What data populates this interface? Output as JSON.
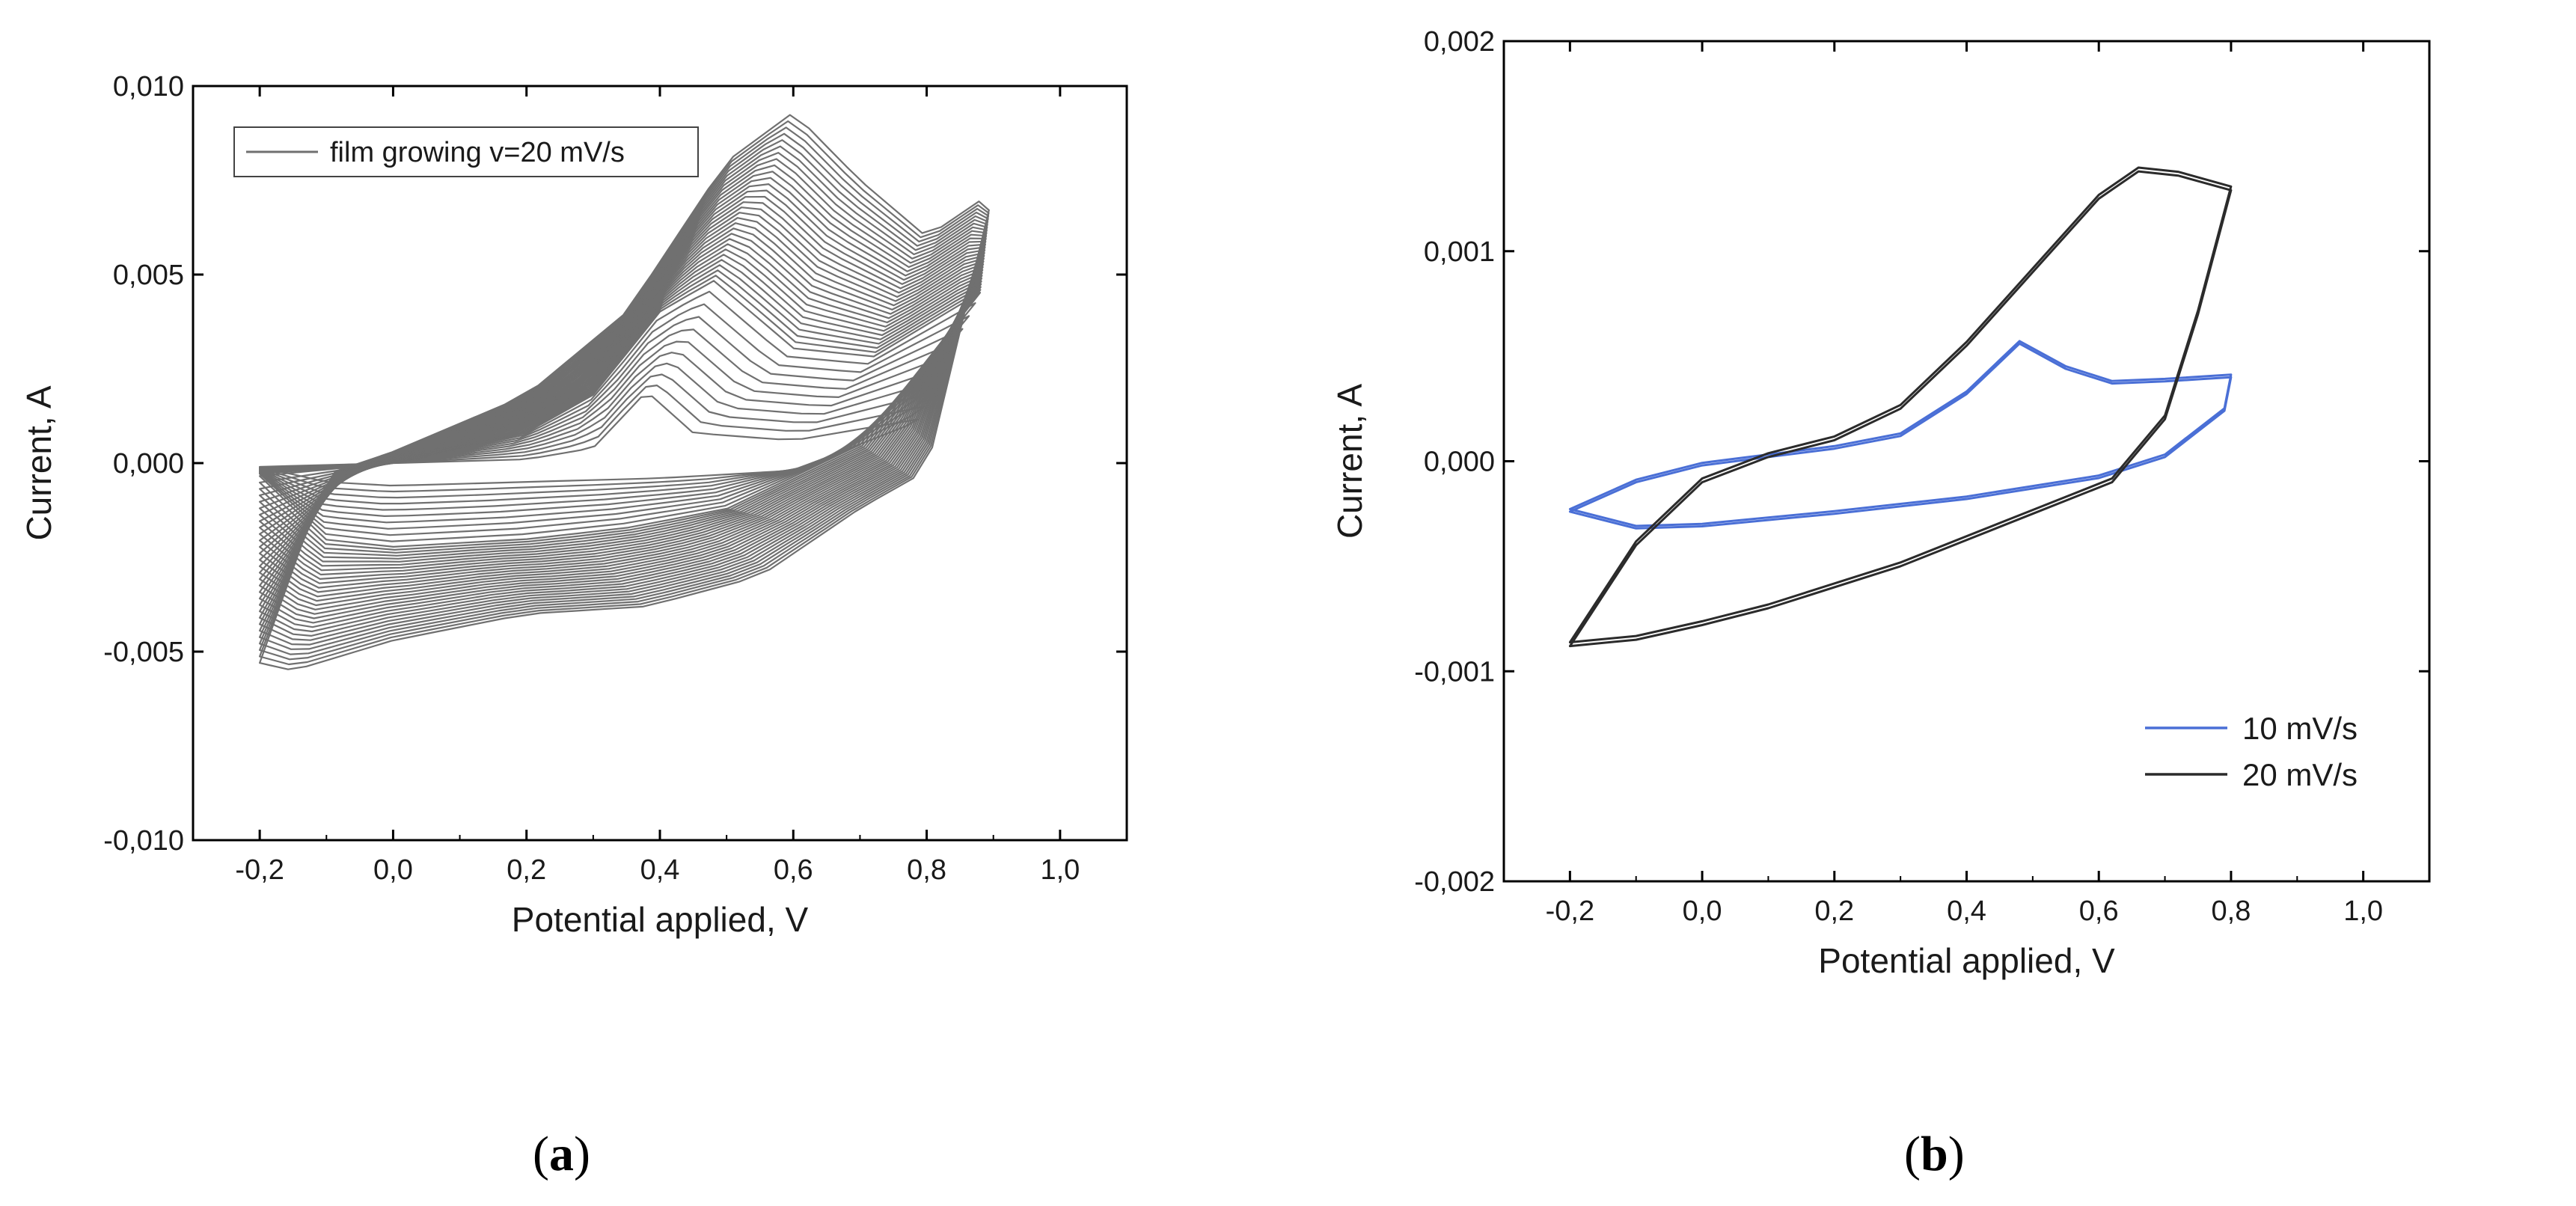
{
  "chart_data": [
    {
      "panel_label": "a",
      "type": "line",
      "xlabel": "Potential applied, V",
      "ylabel": "Current, A",
      "xlim": [
        -0.3,
        1.1
      ],
      "ylim": [
        -0.01,
        0.01
      ],
      "xticks": [
        -0.2,
        0.0,
        0.2,
        0.4,
        0.6,
        0.8,
        1.0
      ],
      "yticks": [
        -0.01,
        -0.005,
        0.0,
        0.005,
        0.01
      ],
      "xtick_labels": [
        "-0,2",
        "0,0",
        "0,2",
        "0,4",
        "0,6",
        "0,8",
        "1,0"
      ],
      "ytick_labels": [
        "-0,010",
        "-0,005",
        "0,000",
        "0,005",
        "0,010"
      ],
      "legend": {
        "position": "top-left",
        "entries": [
          "film growing v=20 mV/s"
        ]
      },
      "series_color": "#707070",
      "cycles": {
        "count": 40,
        "first": {
          "peak_potential": 0.38,
          "peak_current": 0.0019,
          "vertex_potential": 0.8,
          "vertex_current": 0.0012,
          "min_current": -0.0006
        },
        "last": {
          "peak_potential": 0.6,
          "peak_current": 0.0093,
          "vertex_potential": 0.9,
          "vertex_current": 0.0072,
          "min_current": -0.0055
        }
      },
      "series": [
        {
          "values": [
            [
              -0.2,
              -0.0001
            ],
            [
              0.0,
              0.0
            ],
            [
              0.2,
              0.0001
            ],
            [
              0.3,
              0.0004
            ],
            [
              0.38,
              0.0019
            ],
            [
              0.45,
              0.0008
            ],
            [
              0.6,
              0.0006
            ],
            [
              0.8,
              0.0012
            ],
            [
              0.6,
              -0.0002
            ],
            [
              0.4,
              -0.0004
            ],
            [
              0.2,
              -0.0005
            ],
            [
              0.0,
              -0.0006
            ],
            [
              -0.1,
              -0.0005
            ],
            [
              -0.2,
              -0.0001
            ]
          ]
        },
        {
          "values": [
            [
              -0.2,
              -0.0003
            ],
            [
              0.0,
              0.0
            ],
            [
              0.2,
              0.0008
            ],
            [
              0.3,
              0.0018
            ],
            [
              0.4,
              0.004
            ],
            [
              0.48,
              0.0048
            ],
            [
              0.6,
              0.003
            ],
            [
              0.72,
              0.0028
            ],
            [
              0.88,
              0.0045
            ],
            [
              0.7,
              0.0005
            ],
            [
              0.5,
              -0.0012
            ],
            [
              0.35,
              -0.0017
            ],
            [
              0.2,
              -0.002
            ],
            [
              0.0,
              -0.0022
            ],
            [
              -0.1,
              -0.002
            ],
            [
              -0.2,
              -0.0003
            ]
          ]
        },
        {
          "values": [
            [
              -0.2,
              -0.0053
            ],
            [
              -0.1,
              -0.0003
            ],
            [
              0.0,
              0.0003
            ],
            [
              0.2,
              0.0018
            ],
            [
              0.35,
              0.004
            ],
            [
              0.5,
              0.008
            ],
            [
              0.6,
              0.0093
            ],
            [
              0.7,
              0.0075
            ],
            [
              0.8,
              0.006
            ],
            [
              0.9,
              0.0072
            ],
            [
              0.8,
              -0.0002
            ],
            [
              0.7,
              -0.0012
            ],
            [
              0.55,
              -0.003
            ],
            [
              0.38,
              -0.0038
            ],
            [
              0.2,
              -0.004
            ],
            [
              0.0,
              -0.0047
            ],
            [
              -0.15,
              -0.0055
            ],
            [
              -0.2,
              -0.0053
            ]
          ]
        }
      ]
    },
    {
      "panel_label": "b",
      "type": "line",
      "xlabel": "Potential applied, V",
      "ylabel": "Current, A",
      "xlim": [
        -0.3,
        1.1
      ],
      "ylim": [
        -0.002,
        0.002
      ],
      "xticks": [
        -0.2,
        0.0,
        0.2,
        0.4,
        0.6,
        0.8,
        1.0
      ],
      "yticks": [
        -0.002,
        -0.001,
        0.0,
        0.001,
        0.002
      ],
      "xtick_labels": [
        "-0,2",
        "0,0",
        "0,2",
        "0,4",
        "0,6",
        "0,8",
        "1,0"
      ],
      "ytick_labels": [
        "-0,002",
        "-0,001",
        "0,000",
        "0,001",
        "0,002"
      ],
      "legend": {
        "position": "bottom-right",
        "entries": [
          "10 mV/s",
          "20 mV/s"
        ]
      },
      "series": [
        {
          "name": "10 mV/s",
          "color": "#4a6fd6",
          "values": [
            [
              -0.2,
              -0.00024
            ],
            [
              -0.1,
              -0.0001
            ],
            [
              0.0,
              -2e-05
            ],
            [
              0.1,
              2e-05
            ],
            [
              0.2,
              6e-05
            ],
            [
              0.3,
              0.00012
            ],
            [
              0.4,
              0.00032
            ],
            [
              0.48,
              0.00056
            ],
            [
              0.55,
              0.00044
            ],
            [
              0.62,
              0.00037
            ],
            [
              0.7,
              0.00038
            ],
            [
              0.8,
              0.0004
            ],
            [
              0.79,
              0.00024
            ],
            [
              0.7,
              2e-05
            ],
            [
              0.6,
              -8e-05
            ],
            [
              0.4,
              -0.00018
            ],
            [
              0.2,
              -0.00025
            ],
            [
              0.0,
              -0.00031
            ],
            [
              -0.1,
              -0.00032
            ],
            [
              -0.2,
              -0.00024
            ]
          ]
        },
        {
          "name": "20 mV/s",
          "color": "#2b2b2b",
          "values": [
            [
              -0.2,
              -0.00088
            ],
            [
              -0.1,
              -0.0004
            ],
            [
              0.0,
              -0.0001
            ],
            [
              0.1,
              2e-05
            ],
            [
              0.2,
              0.0001
            ],
            [
              0.3,
              0.00025
            ],
            [
              0.4,
              0.00055
            ],
            [
              0.5,
              0.0009
            ],
            [
              0.6,
              0.00125
            ],
            [
              0.66,
              0.00138
            ],
            [
              0.72,
              0.00136
            ],
            [
              0.8,
              0.00129
            ],
            [
              0.75,
              0.0007
            ],
            [
              0.7,
              0.0002
            ],
            [
              0.62,
              -0.0001
            ],
            [
              0.5,
              -0.00025
            ],
            [
              0.3,
              -0.0005
            ],
            [
              0.1,
              -0.0007
            ],
            [
              0.0,
              -0.00078
            ],
            [
              -0.1,
              -0.00085
            ],
            [
              -0.2,
              -0.00088
            ]
          ]
        }
      ]
    }
  ]
}
